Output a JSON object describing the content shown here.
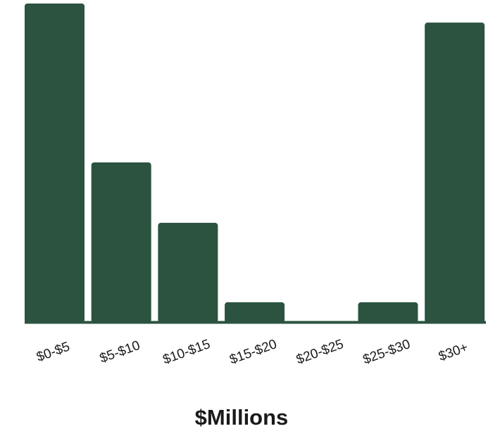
{
  "chart_data": {
    "type": "bar",
    "categories": [
      "$0-$5",
      "$5-$10",
      "$10-$15",
      "$15-$20",
      "$20-$25",
      "$25-$30",
      "$30+"
    ],
    "values": [
      100,
      50,
      31,
      6,
      0,
      6,
      94
    ],
    "title": "",
    "xlabel": "$Millions",
    "ylabel": "",
    "ylim": [
      0,
      100
    ],
    "grid": false,
    "bar_color": "#2b5340",
    "axis_color": "#2b5340"
  }
}
